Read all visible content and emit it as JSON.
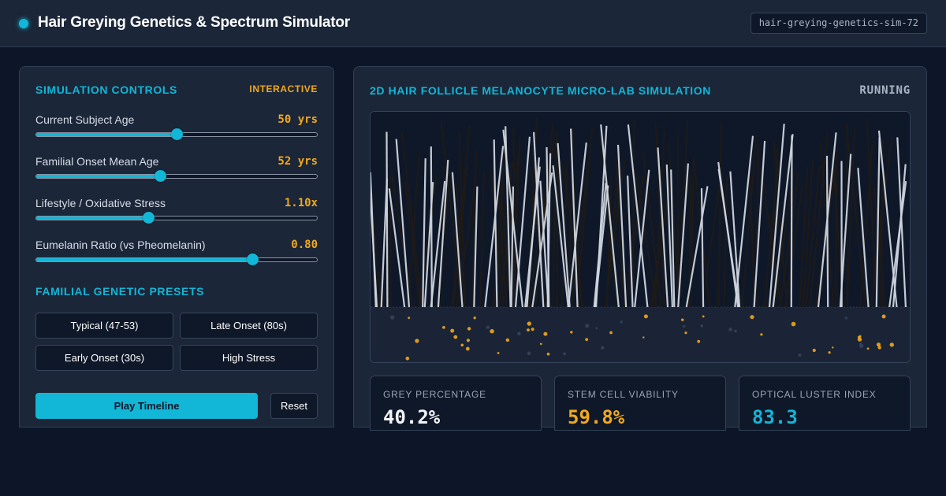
{
  "header": {
    "title": "Hair Greying Genetics & Spectrum Simulator",
    "sim_id": "hair-greying-genetics-sim-72"
  },
  "controls": {
    "title": "SIMULATION CONTROLS",
    "badge": "INTERACTIVE",
    "sliders": [
      {
        "label": "Current Subject Age",
        "value": "50 yrs",
        "fraction": 0.5
      },
      {
        "label": "Familial Onset Mean Age",
        "value": "52 yrs",
        "fraction": 0.44
      },
      {
        "label": "Lifestyle / Oxidative Stress",
        "value": "1.10x",
        "fraction": 0.4
      },
      {
        "label": "Eumelanin Ratio (vs Pheomelanin)",
        "value": "0.80",
        "fraction": 0.77
      }
    ],
    "presets_title": "FAMILIAL GENETIC PRESETS",
    "presets": [
      "Typical (47-53)",
      "Late Onset (80s)",
      "Early Onset (30s)",
      "High Stress"
    ],
    "play_label": "Play Timeline",
    "reset_label": "Reset"
  },
  "simulation": {
    "title": "2D HAIR FOLLICLE MELANOCYTE MICRO-LAB SIMULATION",
    "status": "RUNNING",
    "colors": {
      "grey_hair": "#cfd5de",
      "pigmented_hair": "#1f1b16",
      "melanocyte": "#f2a81d"
    }
  },
  "metrics": [
    {
      "label": "GREY PERCENTAGE",
      "value": "40.2%",
      "color": "#f2f5f8"
    },
    {
      "label": "STEM CELL VIABILITY",
      "value": "59.8%",
      "color": "#f2a81d"
    },
    {
      "label": "OPTICAL LUSTER INDEX",
      "value": "83.3",
      "color": "#12b6d6"
    }
  ]
}
